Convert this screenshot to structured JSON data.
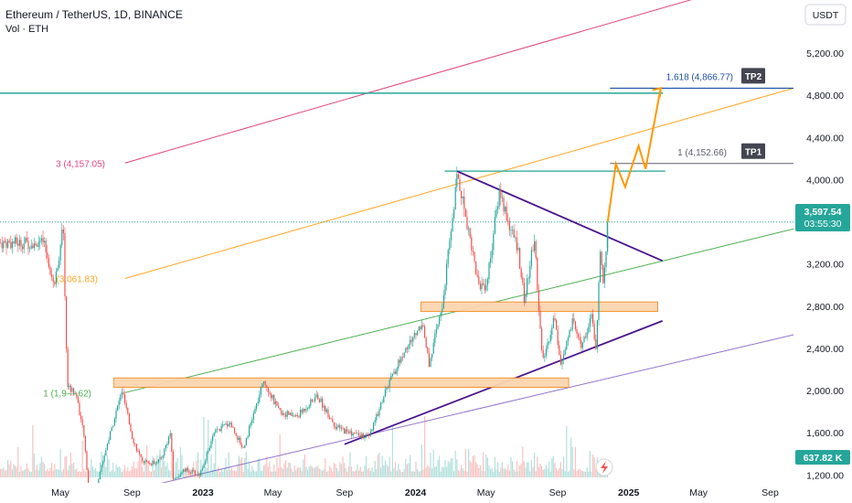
{
  "header": {
    "title": "Ethereum / TetherUS, 1D, BINANCE",
    "volume_label": "Vol · ETH"
  },
  "currency_button": "USDT",
  "colors": {
    "up": "#26a69a",
    "down": "#ef5350",
    "zone_fill": "#fbd5b0",
    "zone_stroke": "#f57c00",
    "pink_channel": "#e0487a",
    "orange_channel": "#ffa726",
    "green_channel": "#4caf50",
    "purple_channel": "#9575cd",
    "triangle": "#4a148c",
    "teal_level": "#26a69a",
    "blue_level": "#1e4fa8",
    "projection": "#ff9800",
    "price_badge": "#26a69a"
  },
  "chart_data": {
    "type": "candlestick",
    "symbol": "Ethereum / TetherUS",
    "timeframe": "1D",
    "exchange": "BINANCE",
    "y_axis": {
      "ticks": [
        "5,200.00",
        "4,800.00",
        "4,400.00",
        "4,000.00",
        "3,200.00",
        "2,800.00",
        "2,400.00",
        "2,000.00",
        "1,600.00",
        "1,200.00"
      ],
      "tick_values": [
        5200,
        4800,
        4400,
        4000,
        3200,
        2800,
        2400,
        2000,
        1600,
        1200
      ],
      "range": [
        1040,
        5700
      ]
    },
    "x_axis": {
      "ticks": [
        "May",
        "Sep",
        "2023",
        "May",
        "Sep",
        "2024",
        "May",
        "Sep",
        "2025",
        "May",
        "Sep"
      ],
      "tick_dates": [
        "2022-05",
        "2022-09",
        "2023-01",
        "2023-05",
        "2023-09",
        "2024-01",
        "2024-05",
        "2024-09",
        "2025-01",
        "2025-05",
        "2025-09"
      ]
    },
    "last_price": "3,597.54",
    "countdown": "03:55:30",
    "volume_badge": "637.82 K",
    "price_path": [
      [
        "2022-04-01",
        3400
      ],
      [
        "2022-04-20",
        3000
      ],
      [
        "2022-05-05",
        3550
      ],
      [
        "2022-05-12",
        2050
      ],
      [
        "2022-05-28",
        1950
      ],
      [
        "2022-06-10",
        1550
      ],
      [
        "2022-06-18",
        1050
      ],
      [
        "2022-07-01",
        1100
      ],
      [
        "2022-07-20",
        1500
      ],
      [
        "2022-08-14",
        2000
      ],
      [
        "2022-09-01",
        1550
      ],
      [
        "2022-09-15",
        1350
      ],
      [
        "2022-10-01",
        1300
      ],
      [
        "2022-10-20",
        1350
      ],
      [
        "2022-11-05",
        1600
      ],
      [
        "2022-11-10",
        1150
      ],
      [
        "2022-12-01",
        1250
      ],
      [
        "2022-12-25",
        1200
      ],
      [
        "2023-01-20",
        1600
      ],
      [
        "2023-02-15",
        1700
      ],
      [
        "2023-03-10",
        1450
      ],
      [
        "2023-04-15",
        2100
      ],
      [
        "2023-05-10",
        1800
      ],
      [
        "2023-06-10",
        1750
      ],
      [
        "2023-07-15",
        1950
      ],
      [
        "2023-08-17",
        1650
      ],
      [
        "2023-09-10",
        1600
      ],
      [
        "2023-10-12",
        1550
      ],
      [
        "2023-11-10",
        2000
      ],
      [
        "2023-12-10",
        2350
      ],
      [
        "2024-01-12",
        2650
      ],
      [
        "2024-01-23",
        2250
      ],
      [
        "2024-02-15",
        2800
      ],
      [
        "2024-03-12",
        4050
      ],
      [
        "2024-04-01",
        3500
      ],
      [
        "2024-04-17",
        3000
      ],
      [
        "2024-05-01",
        3000
      ],
      [
        "2024-05-23",
        3900
      ],
      [
        "2024-06-10",
        3550
      ],
      [
        "2024-06-24",
        3350
      ],
      [
        "2024-07-05",
        2850
      ],
      [
        "2024-07-22",
        3450
      ],
      [
        "2024-08-05",
        2250
      ],
      [
        "2024-08-25",
        2700
      ],
      [
        "2024-09-06",
        2250
      ],
      [
        "2024-09-26",
        2650
      ],
      [
        "2024-10-10",
        2400
      ],
      [
        "2024-10-28",
        2700
      ],
      [
        "2024-11-05",
        2400
      ],
      [
        "2024-11-12",
        3300
      ],
      [
        "2024-11-17",
        3050
      ],
      [
        "2024-11-26",
        3597.54
      ]
    ]
  },
  "annotations": {
    "fib_labels": [
      {
        "text": "3 (4,157.05)",
        "color": "pink"
      },
      {
        "text": "(3,061.83)",
        "color": "orange"
      },
      {
        "text": "1 (1,9—.62)",
        "color": "green"
      }
    ],
    "tp1": {
      "label": "TP1",
      "level_text": "1 (4,152.66)"
    },
    "tp2": {
      "label": "TP2",
      "level_text": "1.618 (4,866.77)"
    },
    "support_zones": [
      {
        "from": "2022-08-01",
        "to": "2024-09-20",
        "low": 2030,
        "high": 2120
      },
      {
        "from": "2024-01-10",
        "to": "2025-02-20",
        "low": 2750,
        "high": 2840
      }
    ],
    "projection_path": [
      [
        "2024-11-26",
        3597.54
      ],
      [
        "2024-12-10",
        4150
      ],
      [
        "2024-12-26",
        3930
      ],
      [
        "2025-01-18",
        4320
      ],
      [
        "2025-01-30",
        4100
      ],
      [
        "2025-02-25",
        4866.77
      ]
    ]
  }
}
